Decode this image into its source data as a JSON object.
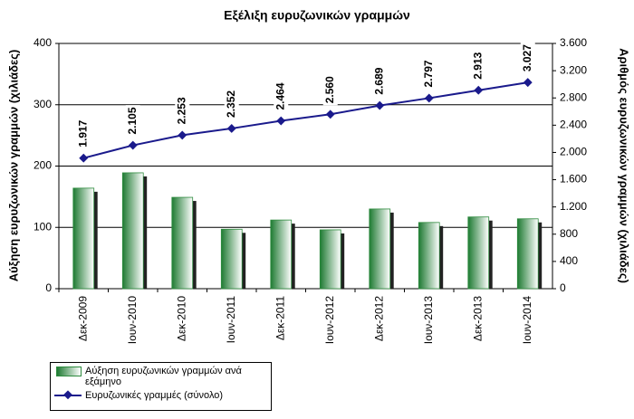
{
  "chart_data": {
    "type": "bar-line",
    "title": "Εξέλιξη ευρυζωνικών γραμμών",
    "y_label": "Αύξηση ευρυζωνικών γραμμών (χιλιάδες)",
    "y2_label": "Αριθμός ευρυζωνικών γραμμών (χιλιάδες)",
    "categories": [
      "Δεκ-2009",
      "Ιουν-2010",
      "Δεκ-2010",
      "Ιουν-2011",
      "Δεκ-2011",
      "Ιουν-2012",
      "Δεκ-2012",
      "Ιουν-2013",
      "Δεκ-2013",
      "Ιουν-2014"
    ],
    "series": [
      {
        "name": "Αύξηση ευρυζωνικών γραμμών ανά εξάμηνο",
        "type": "bar",
        "color": "#2e8b3e",
        "values": [
          164,
          189,
          149,
          97,
          112,
          96,
          130,
          108,
          117,
          114
        ]
      },
      {
        "name": "Ευρυζωνικές γραμμές (σύνολο)",
        "type": "line",
        "axis": "y2",
        "color": "#1a1a8c",
        "values": [
          1917,
          2105,
          2253,
          2352,
          2464,
          2560,
          2689,
          2797,
          2913,
          3027
        ],
        "value_labels": [
          "1.917",
          "2.105",
          "2.253",
          "2.352",
          "2.464",
          "2.560",
          "2.689",
          "2.797",
          "2.913",
          "3.027"
        ]
      }
    ],
    "ylim": [
      0,
      400
    ],
    "yticks": [
      0,
      100,
      200,
      300,
      400
    ],
    "y2lim": [
      0,
      3600
    ],
    "y2ticks": [
      0,
      400,
      800,
      {
        "value": 1200,
        "label": "1.200"
      },
      {
        "value": 1600,
        "label": "1.600"
      },
      {
        "value": 2000,
        "label": "2.000"
      },
      {
        "value": 2400,
        "label": "2.400"
      },
      {
        "value": 2800,
        "label": "2.800"
      },
      {
        "value": 3200,
        "label": "3.200"
      },
      {
        "value": 3600,
        "label": "3.600"
      }
    ],
    "grid": true
  }
}
